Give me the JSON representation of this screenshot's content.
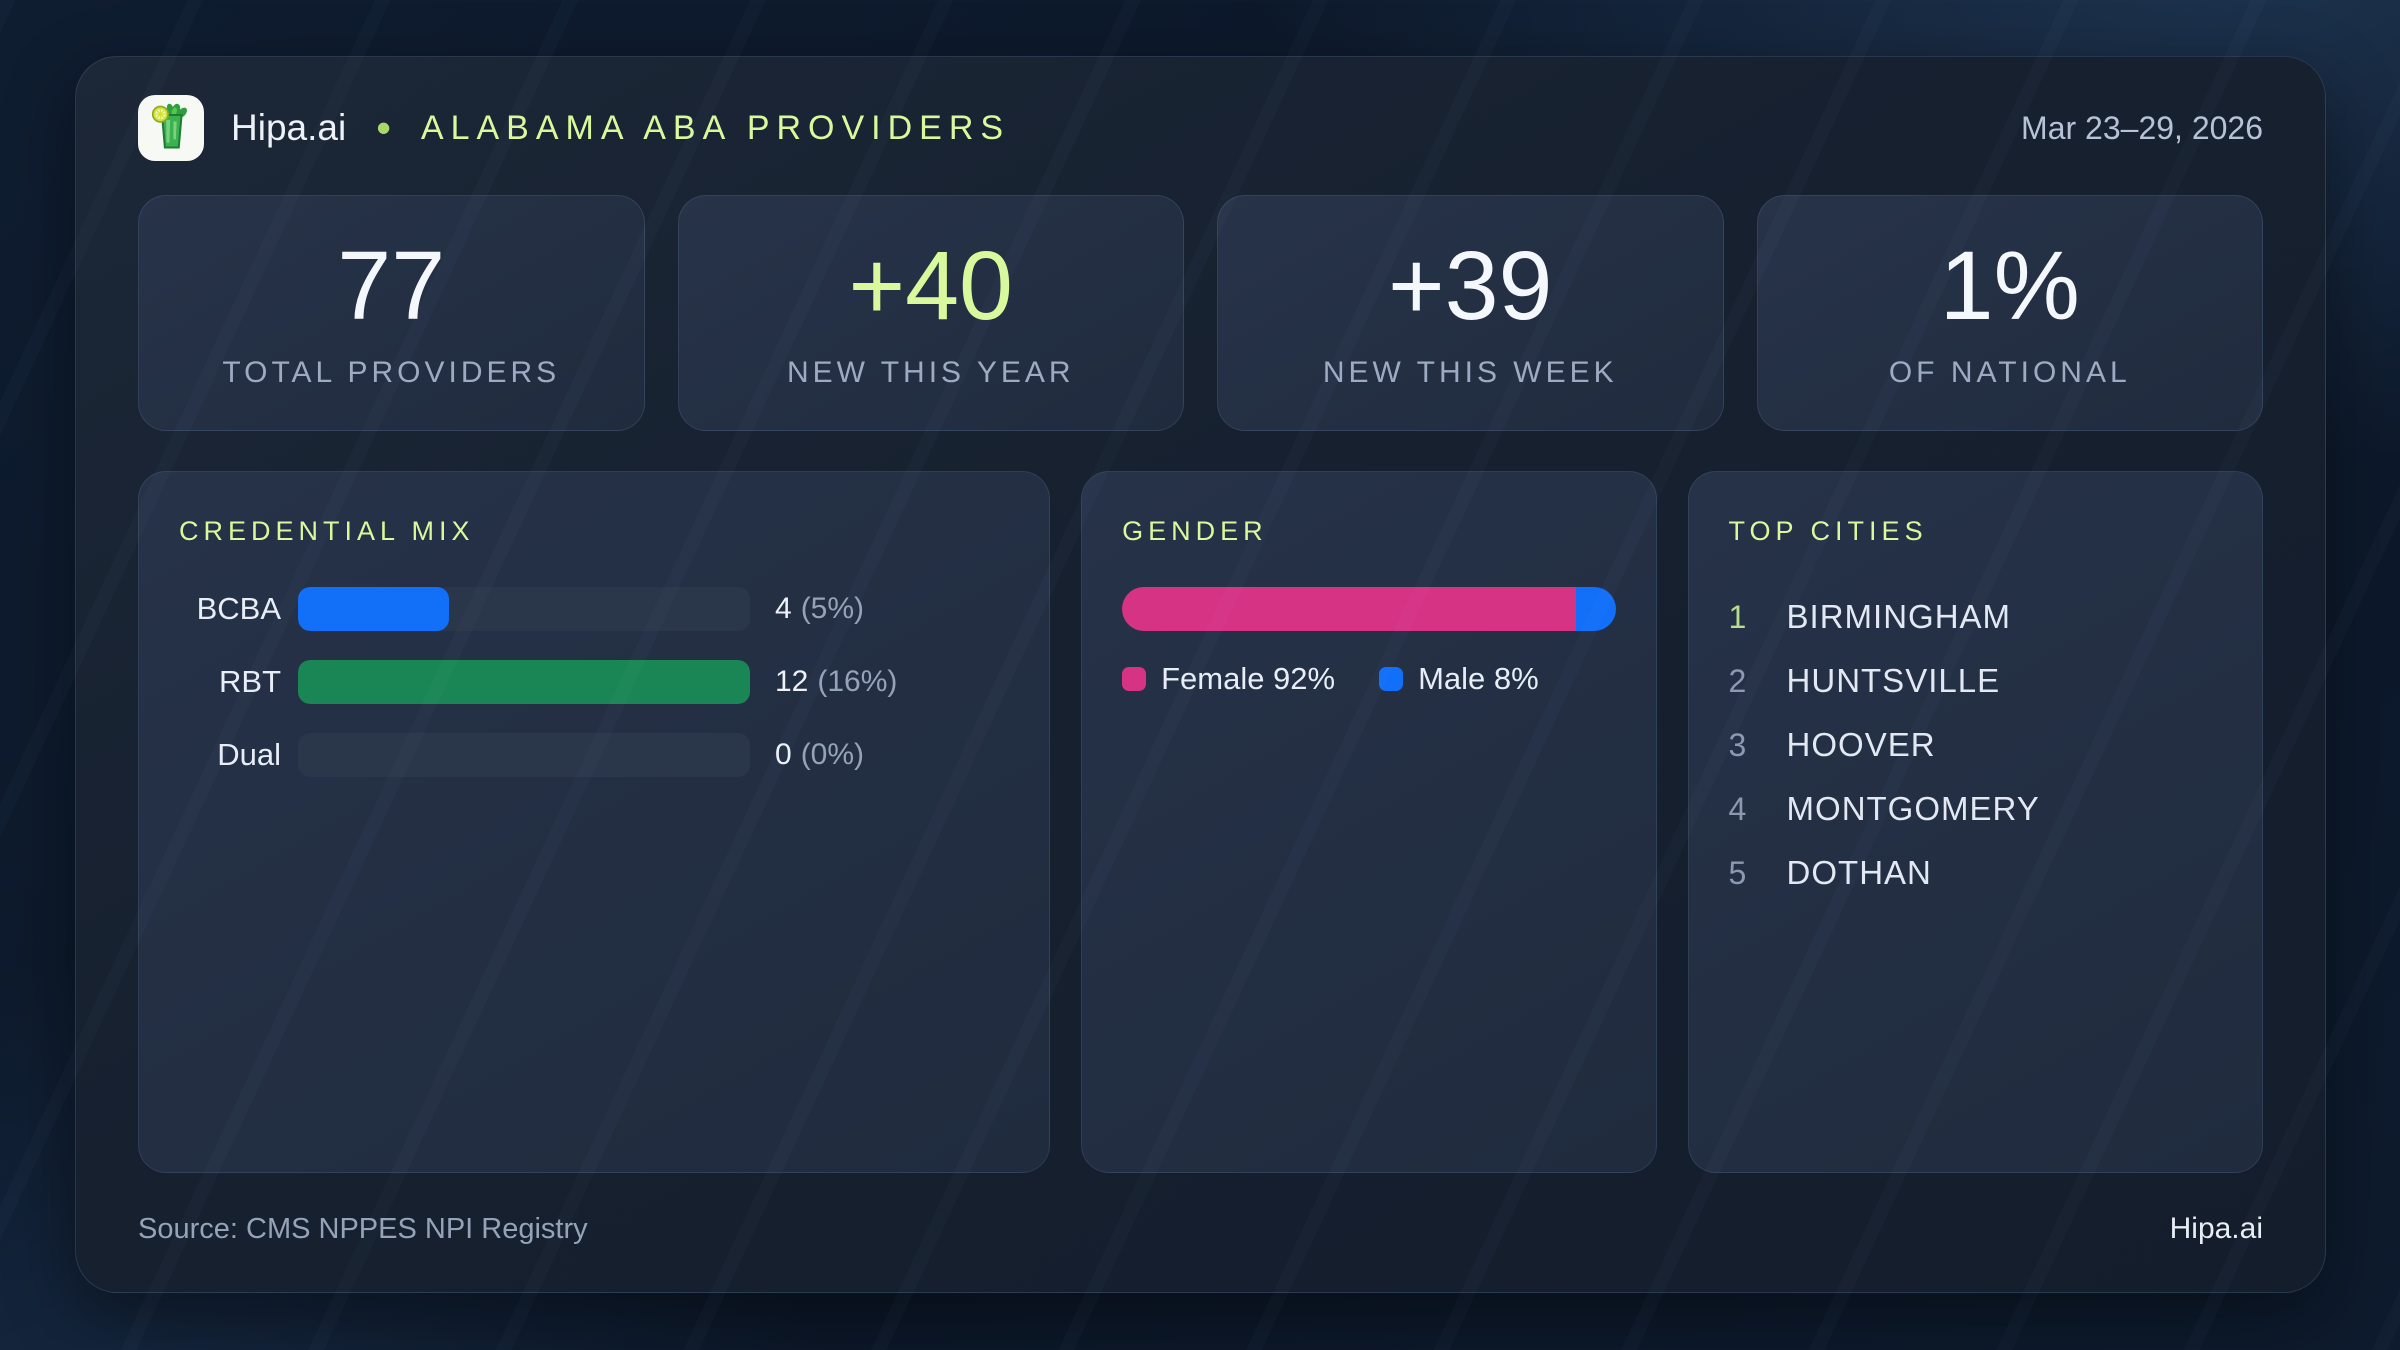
{
  "header": {
    "brand": "Hipa.ai",
    "separator": "•",
    "title": "ALABAMA ABA PROVIDERS",
    "date_range": "Mar 23–29, 2026"
  },
  "stats": [
    {
      "value": "77",
      "label": "TOTAL PROVIDERS",
      "accent": "white"
    },
    {
      "value": "+40",
      "label": "NEW THIS YEAR",
      "accent": "lime"
    },
    {
      "value": "+39",
      "label": "NEW THIS WEEK",
      "accent": "white"
    },
    {
      "value": "1%",
      "label": "OF NATIONAL",
      "accent": "white"
    }
  ],
  "credential_mix": {
    "title": "CREDENTIAL MIX",
    "rows": [
      {
        "label": "BCBA",
        "count": "4",
        "pct": "(5%)",
        "fill_pct": 33.3,
        "color": "#116ff8"
      },
      {
        "label": "RBT",
        "count": "12",
        "pct": "(16%)",
        "fill_pct": 100,
        "color": "#1a8655"
      },
      {
        "label": "Dual",
        "count": "0",
        "pct": "(0%)",
        "fill_pct": 0,
        "color": "transparent"
      }
    ]
  },
  "gender": {
    "title": "GENDER",
    "segments": [
      {
        "label": "Female 92%",
        "pct": 92,
        "color": "#d63384"
      },
      {
        "label": "Male 8%",
        "pct": 8,
        "color": "#116ff8"
      }
    ]
  },
  "top_cities": {
    "title": "TOP CITIES",
    "items": [
      {
        "rank": "1",
        "name": "BIRMINGHAM"
      },
      {
        "rank": "2",
        "name": "HUNTSVILLE"
      },
      {
        "rank": "3",
        "name": "HOOVER"
      },
      {
        "rank": "4",
        "name": "MONTGOMERY"
      },
      {
        "rank": "5",
        "name": "DOTHAN"
      }
    ]
  },
  "footer": {
    "source": "Source: CMS NPPES NPI Registry",
    "brand": "Hipa.ai"
  },
  "colors": {
    "accent_lime": "#d9f99d",
    "blue": "#116ff8",
    "green": "#1a8655",
    "pink": "#d63384",
    "track": "#2a364a"
  },
  "chart_data": [
    {
      "type": "bar",
      "title": "CREDENTIAL MIX",
      "orientation": "horizontal",
      "categories": [
        "BCBA",
        "RBT",
        "Dual"
      ],
      "values": [
        4,
        12,
        0
      ],
      "value_labels": [
        "4 (5%)",
        "12 (16%)",
        "0 (0%)"
      ],
      "bar_colors": [
        "#116ff8",
        "#1a8655",
        "#2a364a"
      ],
      "xlim": [
        0,
        12
      ],
      "grid": false,
      "legend_position": "none"
    },
    {
      "type": "bar",
      "title": "GENDER",
      "orientation": "horizontal-stacked",
      "categories": [
        "Gender"
      ],
      "series": [
        {
          "name": "Female",
          "values": [
            92
          ],
          "color": "#d63384"
        },
        {
          "name": "Male",
          "values": [
            8
          ],
          "color": "#116ff8"
        }
      ],
      "unit": "%",
      "xlim": [
        0,
        100
      ],
      "grid": false,
      "legend_position": "bottom"
    },
    {
      "type": "table",
      "title": "TOP CITIES",
      "columns": [
        "rank",
        "city"
      ],
      "rows": [
        [
          "1",
          "BIRMINGHAM"
        ],
        [
          "2",
          "HUNTSVILLE"
        ],
        [
          "3",
          "HOOVER"
        ],
        [
          "4",
          "MONTGOMERY"
        ],
        [
          "5",
          "DOTHAN"
        ]
      ]
    },
    {
      "type": "table",
      "title": "KPI SUMMARY",
      "columns": [
        "label",
        "value"
      ],
      "rows": [
        [
          "TOTAL PROVIDERS",
          "77"
        ],
        [
          "NEW THIS YEAR",
          "+40"
        ],
        [
          "NEW THIS WEEK",
          "+39"
        ],
        [
          "OF NATIONAL",
          "1%"
        ]
      ]
    }
  ]
}
